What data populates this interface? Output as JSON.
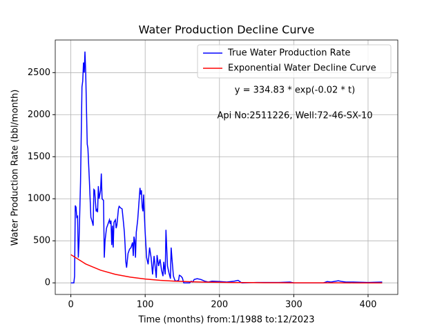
{
  "chart_data": {
    "type": "line",
    "title": "Water Production Decline Curve",
    "xlabel": "Time (months) from:1/1988 to:12/2023",
    "ylabel": "Water Production Rate (bbl/month)",
    "annotations": [
      "y = 334.83 * exp(-0.02 * t)",
      "Api No:2511226, Well:72-46-SX-10"
    ],
    "xlim": [
      -21,
      440
    ],
    "ylim": [
      -138,
      2888
    ],
    "xticks": [
      0,
      100,
      200,
      300,
      400
    ],
    "yticks": [
      0,
      500,
      1000,
      1500,
      2000,
      2500
    ],
    "grid": true,
    "legend": "upper right",
    "series": [
      {
        "name": "True Water Production Rate",
        "color": "#0000ff",
        "x": [
          0,
          4,
          5,
          6,
          7,
          8,
          9,
          10,
          11,
          13,
          15,
          16,
          17,
          18,
          19,
          20,
          22,
          23,
          25,
          27,
          29,
          30,
          31,
          32,
          34,
          35,
          36,
          37,
          38,
          40,
          41,
          42,
          44,
          45,
          46,
          48,
          50,
          52,
          53,
          54,
          55,
          56,
          57,
          58,
          60,
          61,
          62,
          64,
          65,
          67,
          69,
          71,
          72,
          73,
          74,
          75,
          77,
          79,
          81,
          83,
          84,
          85,
          86,
          87,
          88,
          90,
          92,
          93,
          94,
          95,
          96,
          97,
          98,
          99,
          100,
          102,
          104,
          106,
          108,
          110,
          112,
          114,
          115,
          116,
          118,
          120,
          122,
          124,
          125,
          127,
          128,
          129,
          130,
          132,
          134,
          135,
          136,
          138,
          140,
          142,
          145,
          146,
          148,
          150,
          152,
          160,
          162,
          164,
          166,
          170,
          175,
          180,
          185,
          190,
          200,
          210,
          220,
          225,
          230,
          250,
          280,
          295,
          300,
          340,
          345,
          350,
          360,
          365,
          370,
          380,
          400,
          419
        ],
        "values": [
          0,
          0,
          80,
          920,
          900,
          780,
          790,
          300,
          480,
          1200,
          2330,
          2400,
          2620,
          2500,
          2750,
          2500,
          1650,
          1600,
          1200,
          780,
          720,
          680,
          1110,
          1100,
          850,
          870,
          840,
          1150,
          1000,
          1100,
          1300,
          1000,
          980,
          300,
          500,
          650,
          700,
          750,
          700,
          740,
          450,
          680,
          420,
          720,
          750,
          650,
          690,
          880,
          910,
          890,
          880,
          700,
          600,
          450,
          250,
          180,
          350,
          400,
          420,
          480,
          320,
          550,
          500,
          300,
          600,
          750,
          1000,
          1130,
          1050,
          1100,
          900,
          850,
          1050,
          800,
          600,
          300,
          220,
          420,
          300,
          100,
          320,
          150,
          60,
          330,
          200,
          280,
          150,
          80,
          250,
          100,
          630,
          420,
          200,
          120,
          50,
          420,
          300,
          80,
          30,
          20,
          30,
          90,
          80,
          60,
          0,
          0,
          20,
          10,
          40,
          50,
          40,
          20,
          10,
          20,
          15,
          10,
          20,
          30,
          0,
          5,
          5,
          10,
          0,
          0,
          15,
          10,
          25,
          15,
          10,
          10,
          5,
          10
        ]
      },
      {
        "name": "Exponential Water Decline Curve",
        "color": "#ff0000",
        "x": [
          0,
          20,
          40,
          60,
          80,
          100,
          120,
          140,
          160,
          180,
          200,
          220,
          240,
          260,
          280,
          300,
          320,
          340,
          360,
          380,
          400,
          419
        ],
        "values": [
          334.8,
          224.4,
          150.4,
          100.8,
          67.6,
          45.3,
          30.4,
          20.4,
          13.7,
          9.1,
          6.1,
          4.1,
          2.8,
          1.8,
          1.2,
          0.8,
          0.6,
          0.4,
          0.25,
          0.17,
          0.11,
          0.08
        ]
      }
    ]
  }
}
